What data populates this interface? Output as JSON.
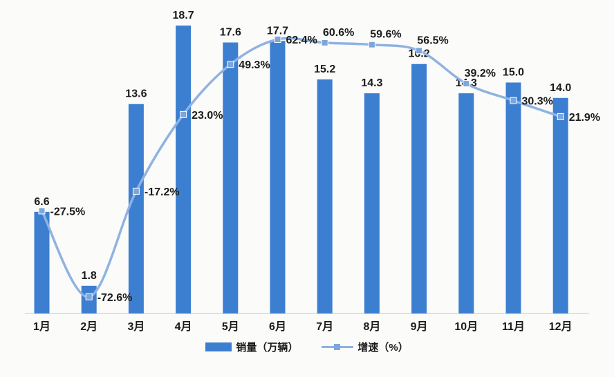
{
  "chart_data": {
    "type": "combo-bar-line",
    "categories": [
      "1月",
      "2月",
      "3月",
      "4月",
      "5月",
      "6月",
      "7月",
      "8月",
      "9月",
      "10月",
      "11月",
      "12月"
    ],
    "series": [
      {
        "name": "销量（万辆）",
        "type": "bar",
        "values": [
          6.6,
          1.8,
          13.6,
          18.7,
          17.6,
          17.7,
          15.2,
          14.3,
          16.2,
          14.3,
          15.0,
          14.0
        ],
        "labels": [
          "6.6",
          "1.8",
          "13.6",
          "18.7",
          "17.6",
          "17.7",
          "15.2",
          "14.3",
          "16.2",
          "14.3",
          "15.0",
          "14.0"
        ],
        "color": "#3c7fd0"
      },
      {
        "name": "增速（%）",
        "type": "line",
        "values": [
          -27.5,
          -72.6,
          -17.2,
          23.0,
          49.3,
          62.4,
          60.6,
          59.6,
          56.5,
          39.2,
          30.3,
          21.9
        ],
        "labels": [
          "-27.5%",
          "-72.6%",
          "-17.2%",
          "23.0%",
          "49.3%",
          "62.4%",
          "60.6%",
          "59.6%",
          "56.5%",
          "39.2%",
          "30.3%",
          "21.9%"
        ],
        "color": "#8fb2e1",
        "marker_color": "#7ca6dc"
      }
    ],
    "title": "",
    "xlabel": "",
    "ylabel": "",
    "sales_axis_range": [
      0,
      20
    ],
    "growth_axis_range": [
      -80,
      70
    ],
    "grid": false,
    "legend_position": "bottom",
    "growth_label_placements": [
      "right",
      "right",
      "right",
      "right",
      "right",
      "right",
      "above",
      "above",
      "above",
      "above",
      "right",
      "right"
    ]
  },
  "colors": {
    "bar": "#3c7fd0",
    "line": "#8fb2e1",
    "marker": "#7ca6dc",
    "axis": "#d8d8d8",
    "text": "#1b1b1b",
    "background": "#fbfbfa"
  }
}
